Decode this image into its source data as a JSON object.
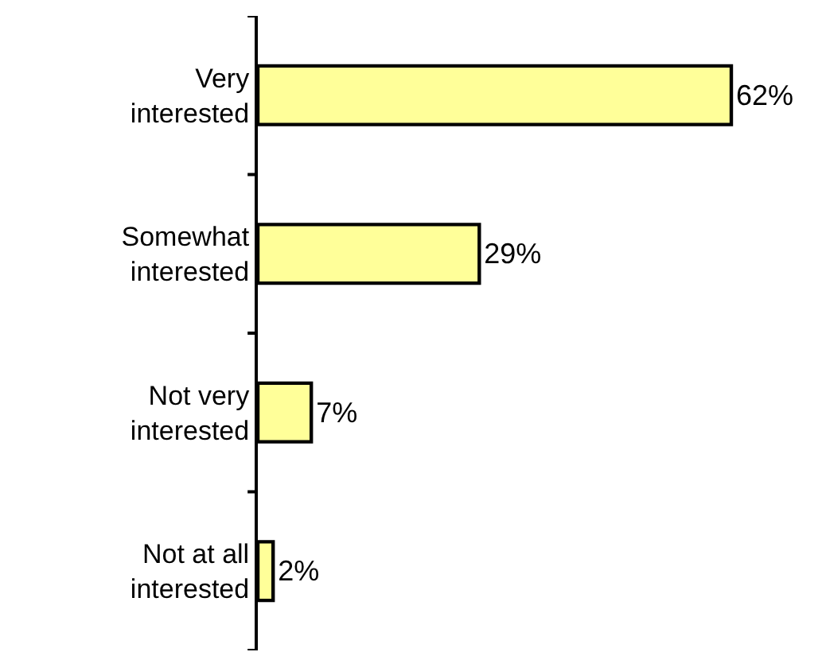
{
  "chart_data": {
    "type": "bar",
    "orientation": "horizontal",
    "categories": [
      "Very interested",
      "Somewhat interested",
      "Not very interested",
      "Not at all interested"
    ],
    "values": [
      62,
      29,
      7,
      2
    ],
    "color": "#ffff99",
    "value_labels": [
      "62%",
      "29%",
      "7%",
      "2%"
    ],
    "tick_labels": "y"
  }
}
